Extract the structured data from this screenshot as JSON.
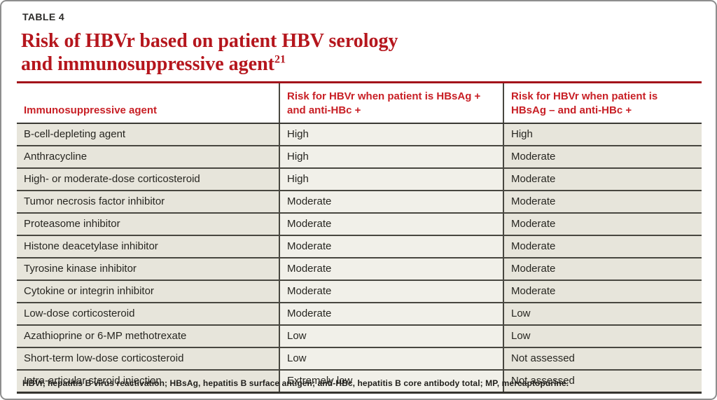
{
  "page": {
    "table_label": "TABLE 4",
    "title": {
      "line1": "Risk of HBVr based on patient HBV serology",
      "line2": "and immunosuppressive agent",
      "superscript": "21"
    },
    "footnote": "HBVr, hepatitis B virus reactivation; HBsAg, hepatitis B surface antigen; anti-HBc, hepatitis B core antibody total; MP, mercaptopurine."
  },
  "table": {
    "columns": [
      {
        "label": "Immunosuppressive agent"
      },
      {
        "label": "Risk for HBVr when patient is HBsAg +\nand anti-HBc +"
      },
      {
        "label": "Risk for HBVr when patient is\nHBsAg –  and anti-HBc +"
      }
    ],
    "rows": [
      {
        "agent": "B-cell-depleting agent",
        "risk_hbsag_pos": "High",
        "risk_hbsag_neg": "High"
      },
      {
        "agent": "Anthracycline",
        "risk_hbsag_pos": "High",
        "risk_hbsag_neg": "Moderate"
      },
      {
        "agent": "High- or moderate-dose corticosteroid",
        "risk_hbsag_pos": "High",
        "risk_hbsag_neg": "Moderate"
      },
      {
        "agent": "Tumor necrosis factor inhibitor",
        "risk_hbsag_pos": "Moderate",
        "risk_hbsag_neg": "Moderate"
      },
      {
        "agent": "Proteasome inhibitor",
        "risk_hbsag_pos": "Moderate",
        "risk_hbsag_neg": "Moderate"
      },
      {
        "agent": "Histone deacetylase inhibitor",
        "risk_hbsag_pos": "Moderate",
        "risk_hbsag_neg": "Moderate"
      },
      {
        "agent": "Tyrosine kinase inhibitor",
        "risk_hbsag_pos": "Moderate",
        "risk_hbsag_neg": "Moderate"
      },
      {
        "agent": "Cytokine or integrin inhibitor",
        "risk_hbsag_pos": "Moderate",
        "risk_hbsag_neg": "Moderate"
      },
      {
        "agent": "Low-dose corticosteroid",
        "risk_hbsag_pos": "Moderate",
        "risk_hbsag_neg": "Low"
      },
      {
        "agent": "Azathioprine or 6-MP methotrexate",
        "risk_hbsag_pos": "Low",
        "risk_hbsag_neg": "Low"
      },
      {
        "agent": "Short-term low-dose corticosteroid",
        "risk_hbsag_pos": "Low",
        "risk_hbsag_neg": "Not assessed"
      },
      {
        "agent": "Intra-articular steroid injection",
        "risk_hbsag_pos": "Extremely low",
        "risk_hbsag_neg": "Not assessed"
      }
    ]
  },
  "colors": {
    "title_red": "#b5161d",
    "header_text_red": "#c81f25",
    "top_rule_red": "#a3121a",
    "cell_beige": "#e7e5db",
    "cell_light": "#f1f0e9",
    "grid_dark": "#484740",
    "frame_gray": "#8e8e8e"
  }
}
